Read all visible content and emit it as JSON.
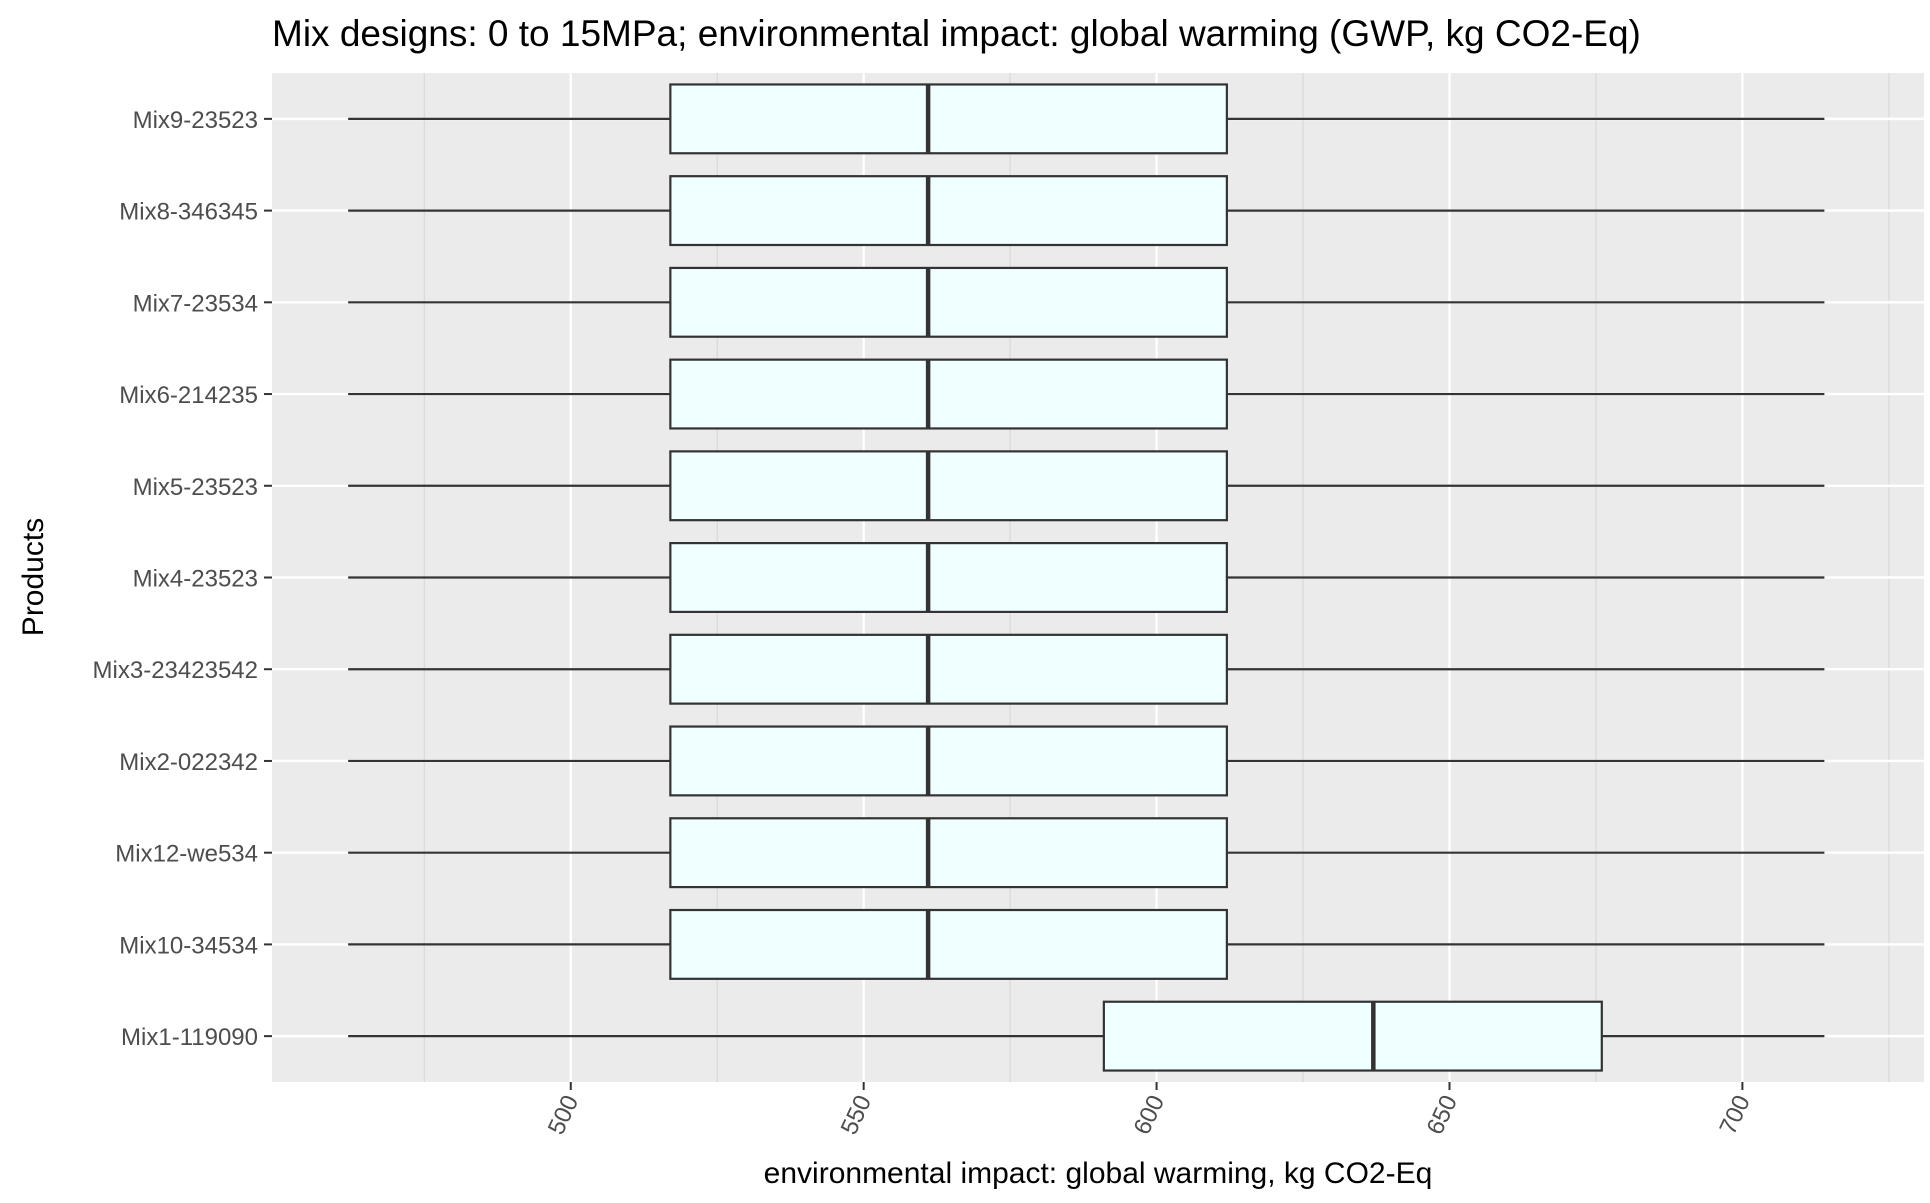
{
  "chart_data": {
    "type": "boxplot",
    "orientation": "horizontal",
    "title": "Mix designs: 0 to 15MPa; environmental impact: global warming (GWP, kg CO2-Eq)",
    "xlabel": "environmental impact: global warming, kg CO2-Eq",
    "ylabel": "Products",
    "xlim": [
      449,
      731
    ],
    "xticks": [
      500,
      550,
      600,
      650,
      700
    ],
    "xtick_labels": [
      "500",
      "550",
      "600",
      "650",
      "700"
    ],
    "grid": true,
    "legend": "none",
    "box_fill": "#F0FFFF",
    "box_stroke": "#333333",
    "panel_background": "#EBEBEB",
    "categories": [
      "Mix9-23523",
      "Mix8-346345",
      "Mix7-23534",
      "Mix6-214235",
      "Mix5-23523",
      "Mix4-23523",
      "Mix3-23423542",
      "Mix2-022342",
      "Mix12-we534",
      "Mix10-34534",
      "Mix1-119090"
    ],
    "boxes": [
      {
        "label": "Mix9-23523",
        "min": 462,
        "q1": 517,
        "median": 561,
        "q3": 612,
        "max": 714
      },
      {
        "label": "Mix8-346345",
        "min": 462,
        "q1": 517,
        "median": 561,
        "q3": 612,
        "max": 714
      },
      {
        "label": "Mix7-23534",
        "min": 462,
        "q1": 517,
        "median": 561,
        "q3": 612,
        "max": 714
      },
      {
        "label": "Mix6-214235",
        "min": 462,
        "q1": 517,
        "median": 561,
        "q3": 612,
        "max": 714
      },
      {
        "label": "Mix5-23523",
        "min": 462,
        "q1": 517,
        "median": 561,
        "q3": 612,
        "max": 714
      },
      {
        "label": "Mix4-23523",
        "min": 462,
        "q1": 517,
        "median": 561,
        "q3": 612,
        "max": 714
      },
      {
        "label": "Mix3-23423542",
        "min": 462,
        "q1": 517,
        "median": 561,
        "q3": 612,
        "max": 714
      },
      {
        "label": "Mix2-022342",
        "min": 462,
        "q1": 517,
        "median": 561,
        "q3": 612,
        "max": 714
      },
      {
        "label": "Mix12-we534",
        "min": 462,
        "q1": 517,
        "median": 561,
        "q3": 612,
        "max": 714
      },
      {
        "label": "Mix10-34534",
        "min": 462,
        "q1": 517,
        "median": 561,
        "q3": 612,
        "max": 714
      },
      {
        "label": "Mix1-119090",
        "min": 462,
        "q1": 591,
        "median": 637,
        "q3": 676,
        "max": 714
      }
    ]
  }
}
